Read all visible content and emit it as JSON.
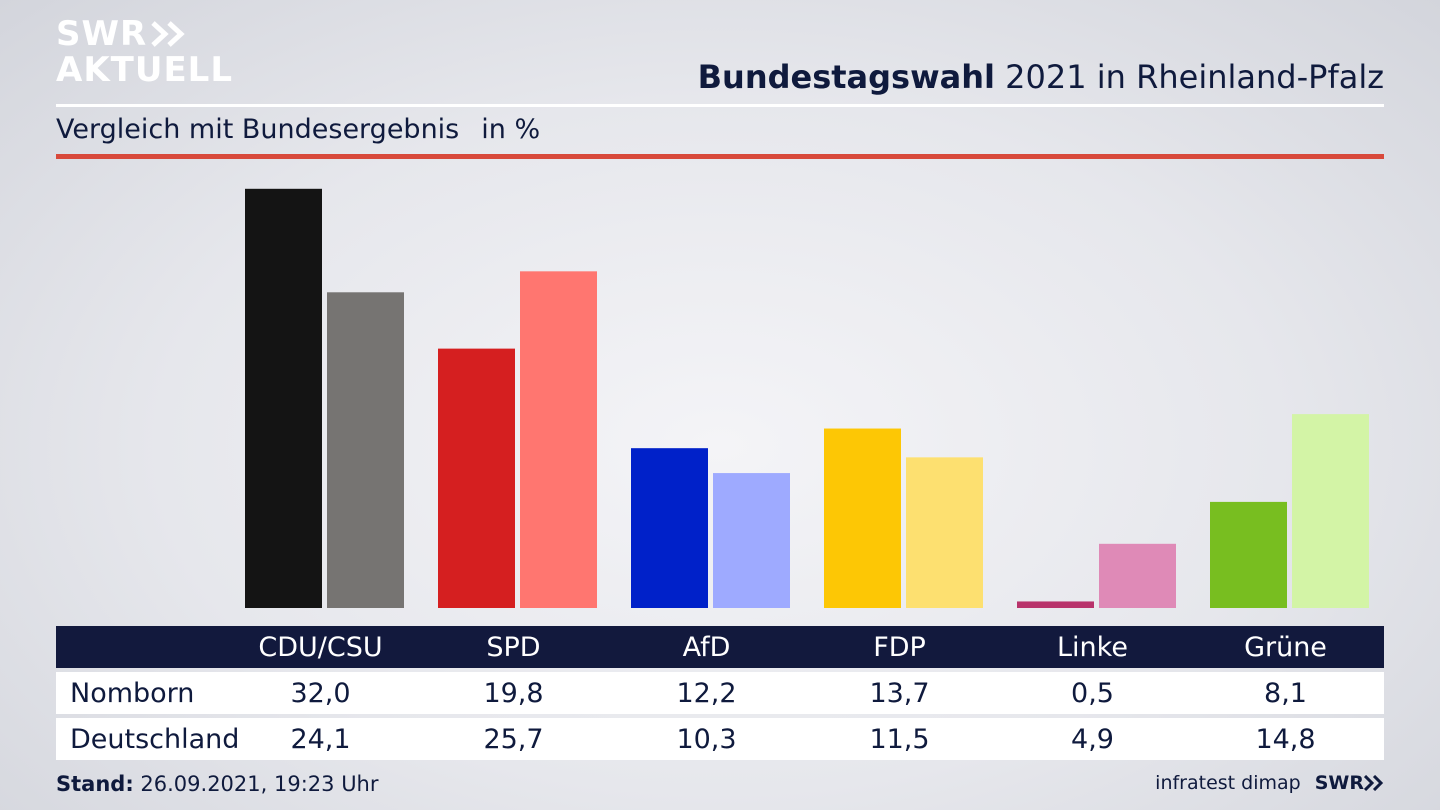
{
  "logo": {
    "line1": "SWR",
    "line2": "AKTUELL"
  },
  "title": {
    "bold": "Bundestagswahl",
    "rest": "2021 in Rheinland-Pfalz"
  },
  "subtitle": {
    "text": "Vergleich mit Bundesergebnis",
    "unit": "in %"
  },
  "chart_data": {
    "type": "bar",
    "categories": [
      "CDU/CSU",
      "SPD",
      "AfD",
      "FDP",
      "Linke",
      "Grüne"
    ],
    "series": [
      {
        "name": "Nomborn",
        "values": [
          32.0,
          19.8,
          12.2,
          13.7,
          0.5,
          8.1
        ],
        "colors": [
          "#141414",
          "#d51f20",
          "#0021c9",
          "#fdc705",
          "#b8336b",
          "#78be20"
        ]
      },
      {
        "name": "Deutschland",
        "values": [
          24.1,
          25.7,
          10.3,
          11.5,
          4.9,
          14.8
        ],
        "colors": [
          "#767472",
          "#ff7670",
          "#9eaaff",
          "#fde070",
          "#df8ab7",
          "#d3f4a6"
        ]
      }
    ]
  },
  "table": {
    "header": [
      "CDU/CSU",
      "SPD",
      "AfD",
      "FDP",
      "Linke",
      "Grüne"
    ],
    "rows": [
      {
        "label": "Nomborn",
        "values": [
          "32,0",
          "19,8",
          "12,2",
          "13,7",
          "0,5",
          "8,1"
        ]
      },
      {
        "label": "Deutschland",
        "values": [
          "24,1",
          "25,7",
          "10,3",
          "11,5",
          "4,9",
          "14,8"
        ]
      }
    ]
  },
  "footer": {
    "stand_label": "Stand:",
    "stand_value": "26.09.2021, 19:23 Uhr",
    "source": "infratest dimap",
    "brand": "SWR"
  }
}
